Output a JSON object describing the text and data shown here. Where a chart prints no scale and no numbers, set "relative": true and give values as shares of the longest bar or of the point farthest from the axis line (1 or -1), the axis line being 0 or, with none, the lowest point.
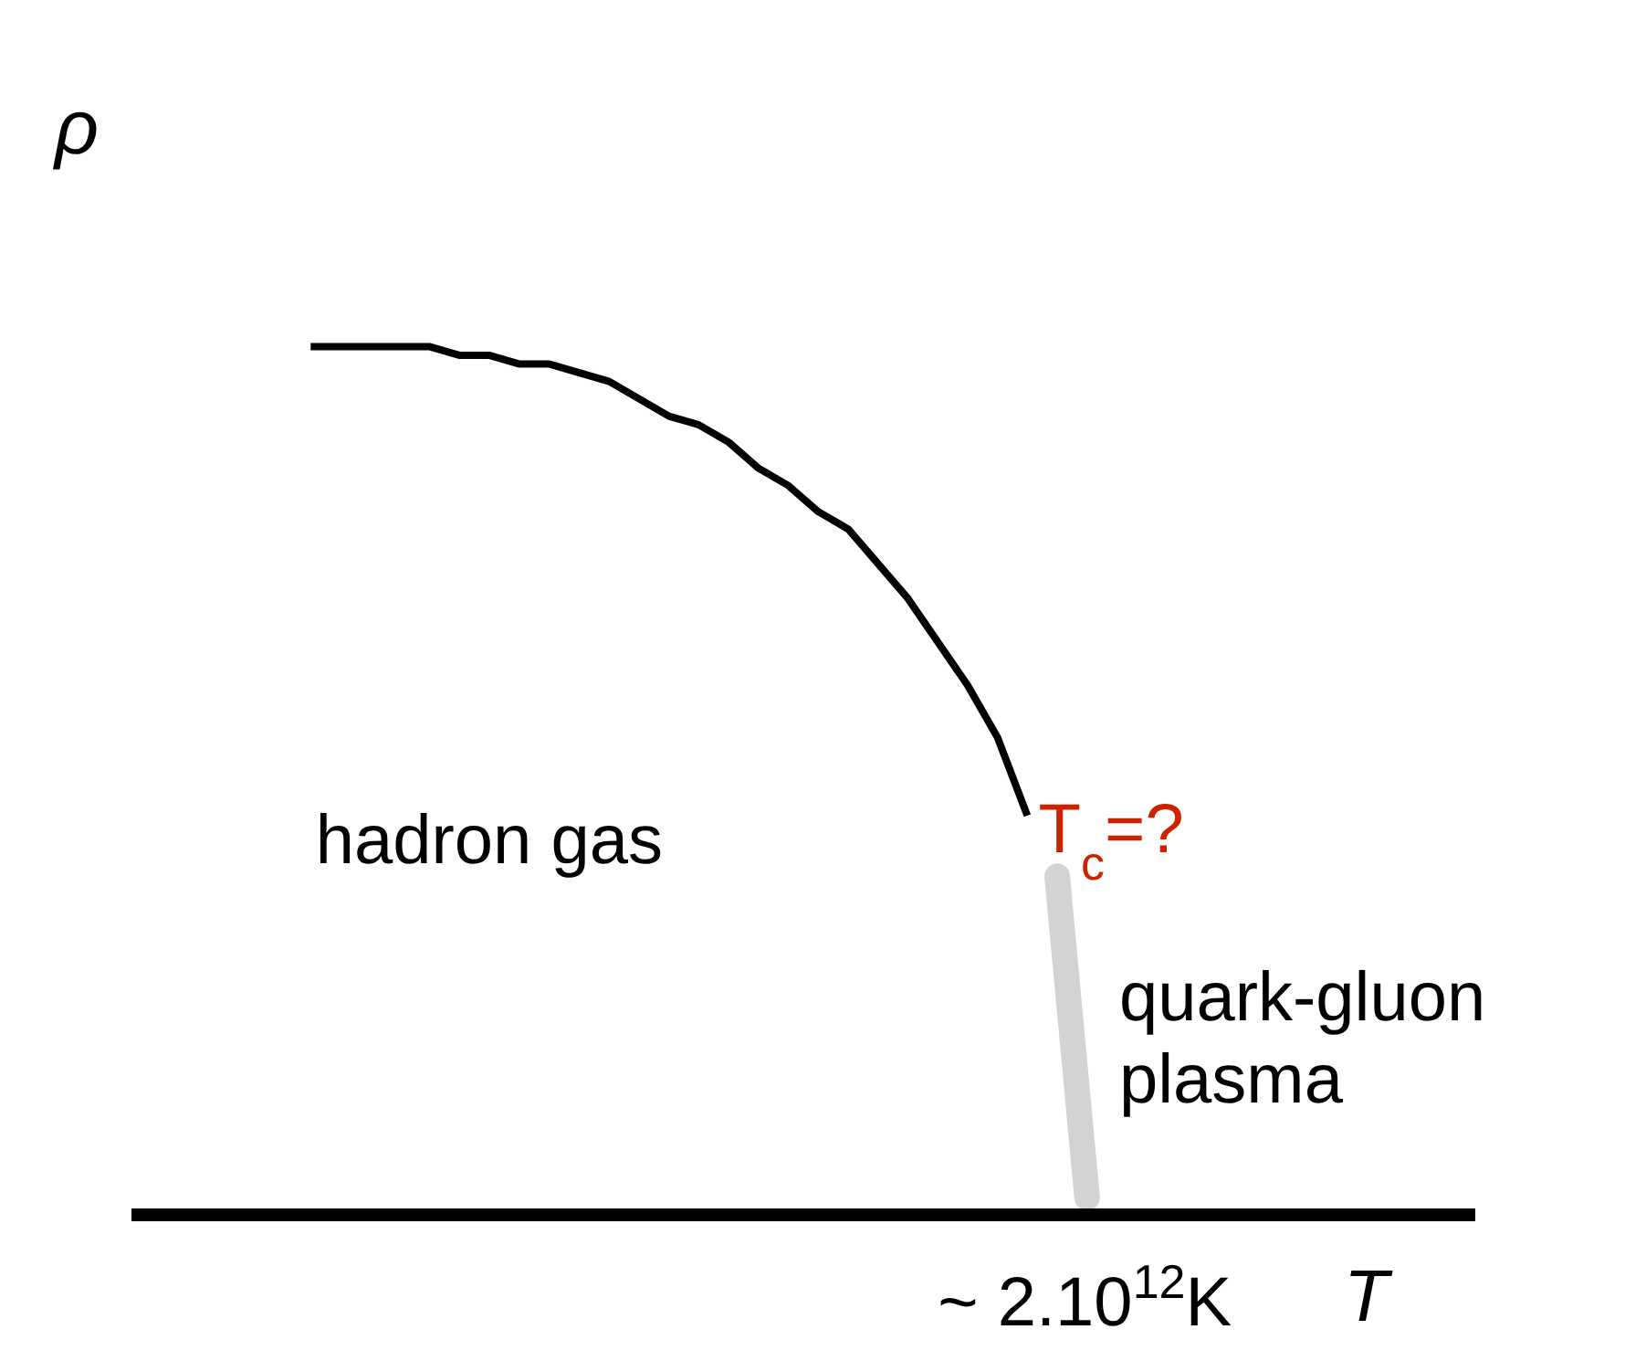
{
  "chart_data": {
    "type": "line",
    "relative": true,
    "xlabel": "T",
    "ylabel": "ρ",
    "marker": "none",
    "grid": false,
    "categories": [
      null,
      null,
      null,
      null,
      null,
      null,
      null,
      null,
      null,
      null,
      null,
      null,
      null,
      null,
      null,
      null,
      null,
      null,
      null,
      null,
      null,
      null,
      null,
      null,
      null,
      null,
      null,
      null,
      null,
      null,
      null,
      null,
      null,
      null,
      null,
      null,
      null,
      null,
      null,
      null,
      null,
      null,
      null,
      null,
      null,
      null
    ],
    "series": [
      {
        "color": "#000000",
        "values": [
          null,
          null,
          null,
          null,
          null,
          null,
          1,
          1,
          1,
          1,
          1,
          0.99,
          0.99,
          0.98,
          0.98,
          0.97,
          0.96,
          0.94,
          0.92,
          0.91,
          0.89,
          0.86,
          0.84,
          0.81,
          0.79,
          0.75,
          0.71,
          0.66,
          0.61,
          0.55,
          0.46,
          null,
          null,
          null,
          null,
          null,
          null,
          null,
          null,
          null,
          null,
          null,
          null,
          null,
          null,
          null
        ]
      },
      {
        "color": "#d3d3d3",
        "values": [
          null,
          null,
          null,
          null,
          null,
          null,
          null,
          null,
          null,
          null,
          null,
          null,
          null,
          null,
          null,
          null,
          null,
          null,
          null,
          null,
          null,
          null,
          null,
          null,
          null,
          null,
          null,
          null,
          null,
          null,
          null,
          0.39,
          0.02,
          null,
          null,
          null,
          null,
          null,
          null,
          null,
          null,
          null,
          null,
          null,
          null,
          null
        ]
      }
    ],
    "annotations": [
      "T$_{c}$=?",
      "hadron gas",
      "quark-gluon plasma",
      "~ 2.10$^{12}$K"
    ]
  }
}
